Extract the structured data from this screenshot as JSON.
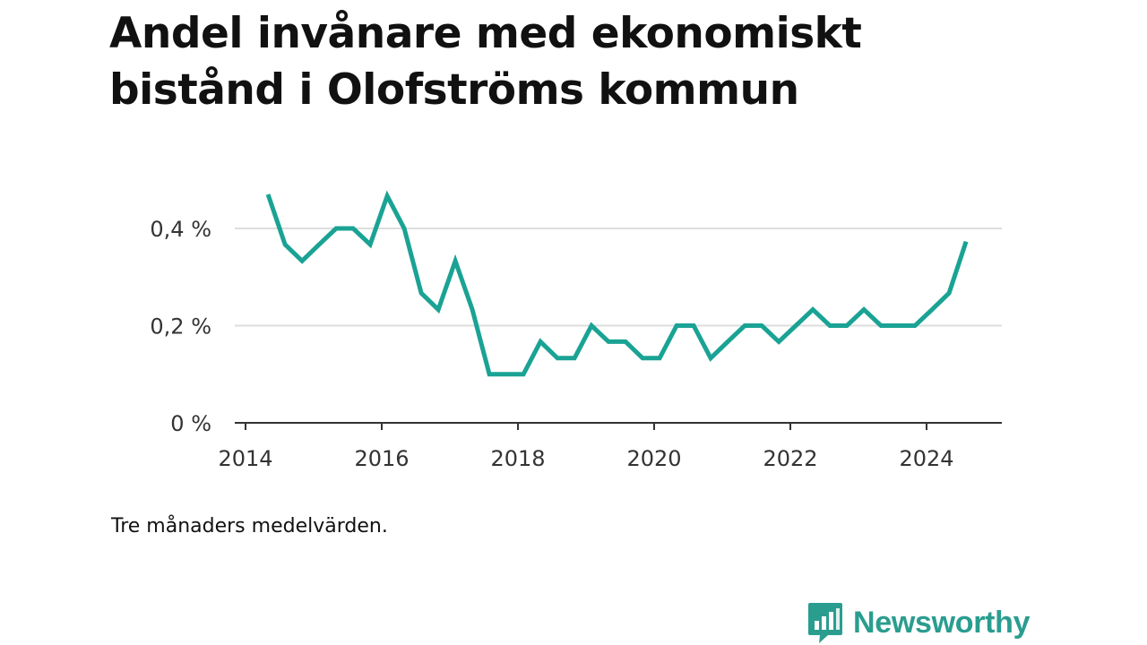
{
  "title": "Andel invånare med ekonomiskt bistånd i Olofströms kommun",
  "note": "Tre månaders medelvärden.",
  "brand": {
    "name": "Newsworthy",
    "color": "#2a9d8f",
    "icon": "newsworthy-logo-icon"
  },
  "colors": {
    "line": "#1aa394",
    "grid": "#dddddd",
    "axis": "#333333"
  },
  "chart_data": {
    "type": "line",
    "title": "Andel invånare med ekonomiskt bistånd i Olofströms kommun",
    "xlabel": "",
    "ylabel": "",
    "x_ticks": [
      "2014",
      "2016",
      "2018",
      "2020",
      "2022",
      "2024"
    ],
    "y_ticks": [
      "0 %",
      "0,2 %",
      "0,4 %"
    ],
    "xlim": [
      2014,
      2025.1
    ],
    "ylim": [
      0,
      0.4
    ],
    "grid": true,
    "series": [
      {
        "name": "",
        "x": [
          2014.33,
          2014.58,
          2014.83,
          2015.08,
          2015.33,
          2015.58,
          2015.83,
          2016.08,
          2016.33,
          2016.58,
          2016.83,
          2017.08,
          2017.33,
          2017.58,
          2017.83,
          2018.08,
          2018.33,
          2018.58,
          2018.83,
          2019.08,
          2019.33,
          2019.58,
          2019.83,
          2020.08,
          2020.33,
          2020.58,
          2020.83,
          2021.08,
          2021.33,
          2021.58,
          2021.83,
          2022.08,
          2022.33,
          2022.58,
          2022.83,
          2023.08,
          2023.33,
          2023.58,
          2023.83,
          2024.08,
          2024.33,
          2024.58
        ],
        "values": [
          0.47,
          0.367,
          0.333,
          0.367,
          0.4,
          0.4,
          0.367,
          0.467,
          0.4,
          0.267,
          0.233,
          0.333,
          0.233,
          0.1,
          0.1,
          0.1,
          0.167,
          0.133,
          0.133,
          0.2,
          0.167,
          0.167,
          0.133,
          0.133,
          0.2,
          0.2,
          0.133,
          0.167,
          0.2,
          0.2,
          0.167,
          0.2,
          0.233,
          0.2,
          0.2,
          0.233,
          0.2,
          0.2,
          0.2,
          0.233,
          0.267,
          0.373
        ]
      }
    ]
  }
}
